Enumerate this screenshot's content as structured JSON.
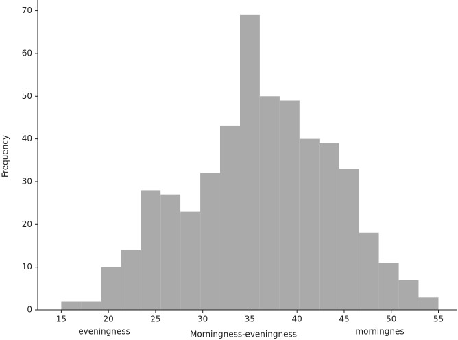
{
  "chart_data": {
    "type": "histogram",
    "xlabel": "Morningness-eveningness",
    "ylabel": "Frequency",
    "annotations": [
      "eveningness",
      "morningnes"
    ],
    "bins": [
      15,
      17.11,
      19.21,
      21.32,
      23.42,
      25.53,
      27.63,
      29.74,
      31.84,
      33.95,
      36.05,
      38.16,
      40.26,
      42.37,
      44.47,
      46.58,
      48.68,
      50.79,
      52.89,
      55
    ],
    "values": [
      2,
      2,
      10,
      14,
      28,
      27,
      23,
      32,
      43,
      69,
      50,
      49,
      40,
      39,
      33,
      18,
      11,
      7,
      3
    ],
    "color": "#aaaaaa",
    "xlim": [
      12.5,
      57
    ],
    "xticks": [
      15,
      20,
      25,
      30,
      35,
      40,
      45,
      50,
      55
    ],
    "ylim": [
      0,
      72.5
    ],
    "yticks": [
      0,
      10,
      20,
      30,
      40,
      50,
      60,
      70
    ]
  }
}
